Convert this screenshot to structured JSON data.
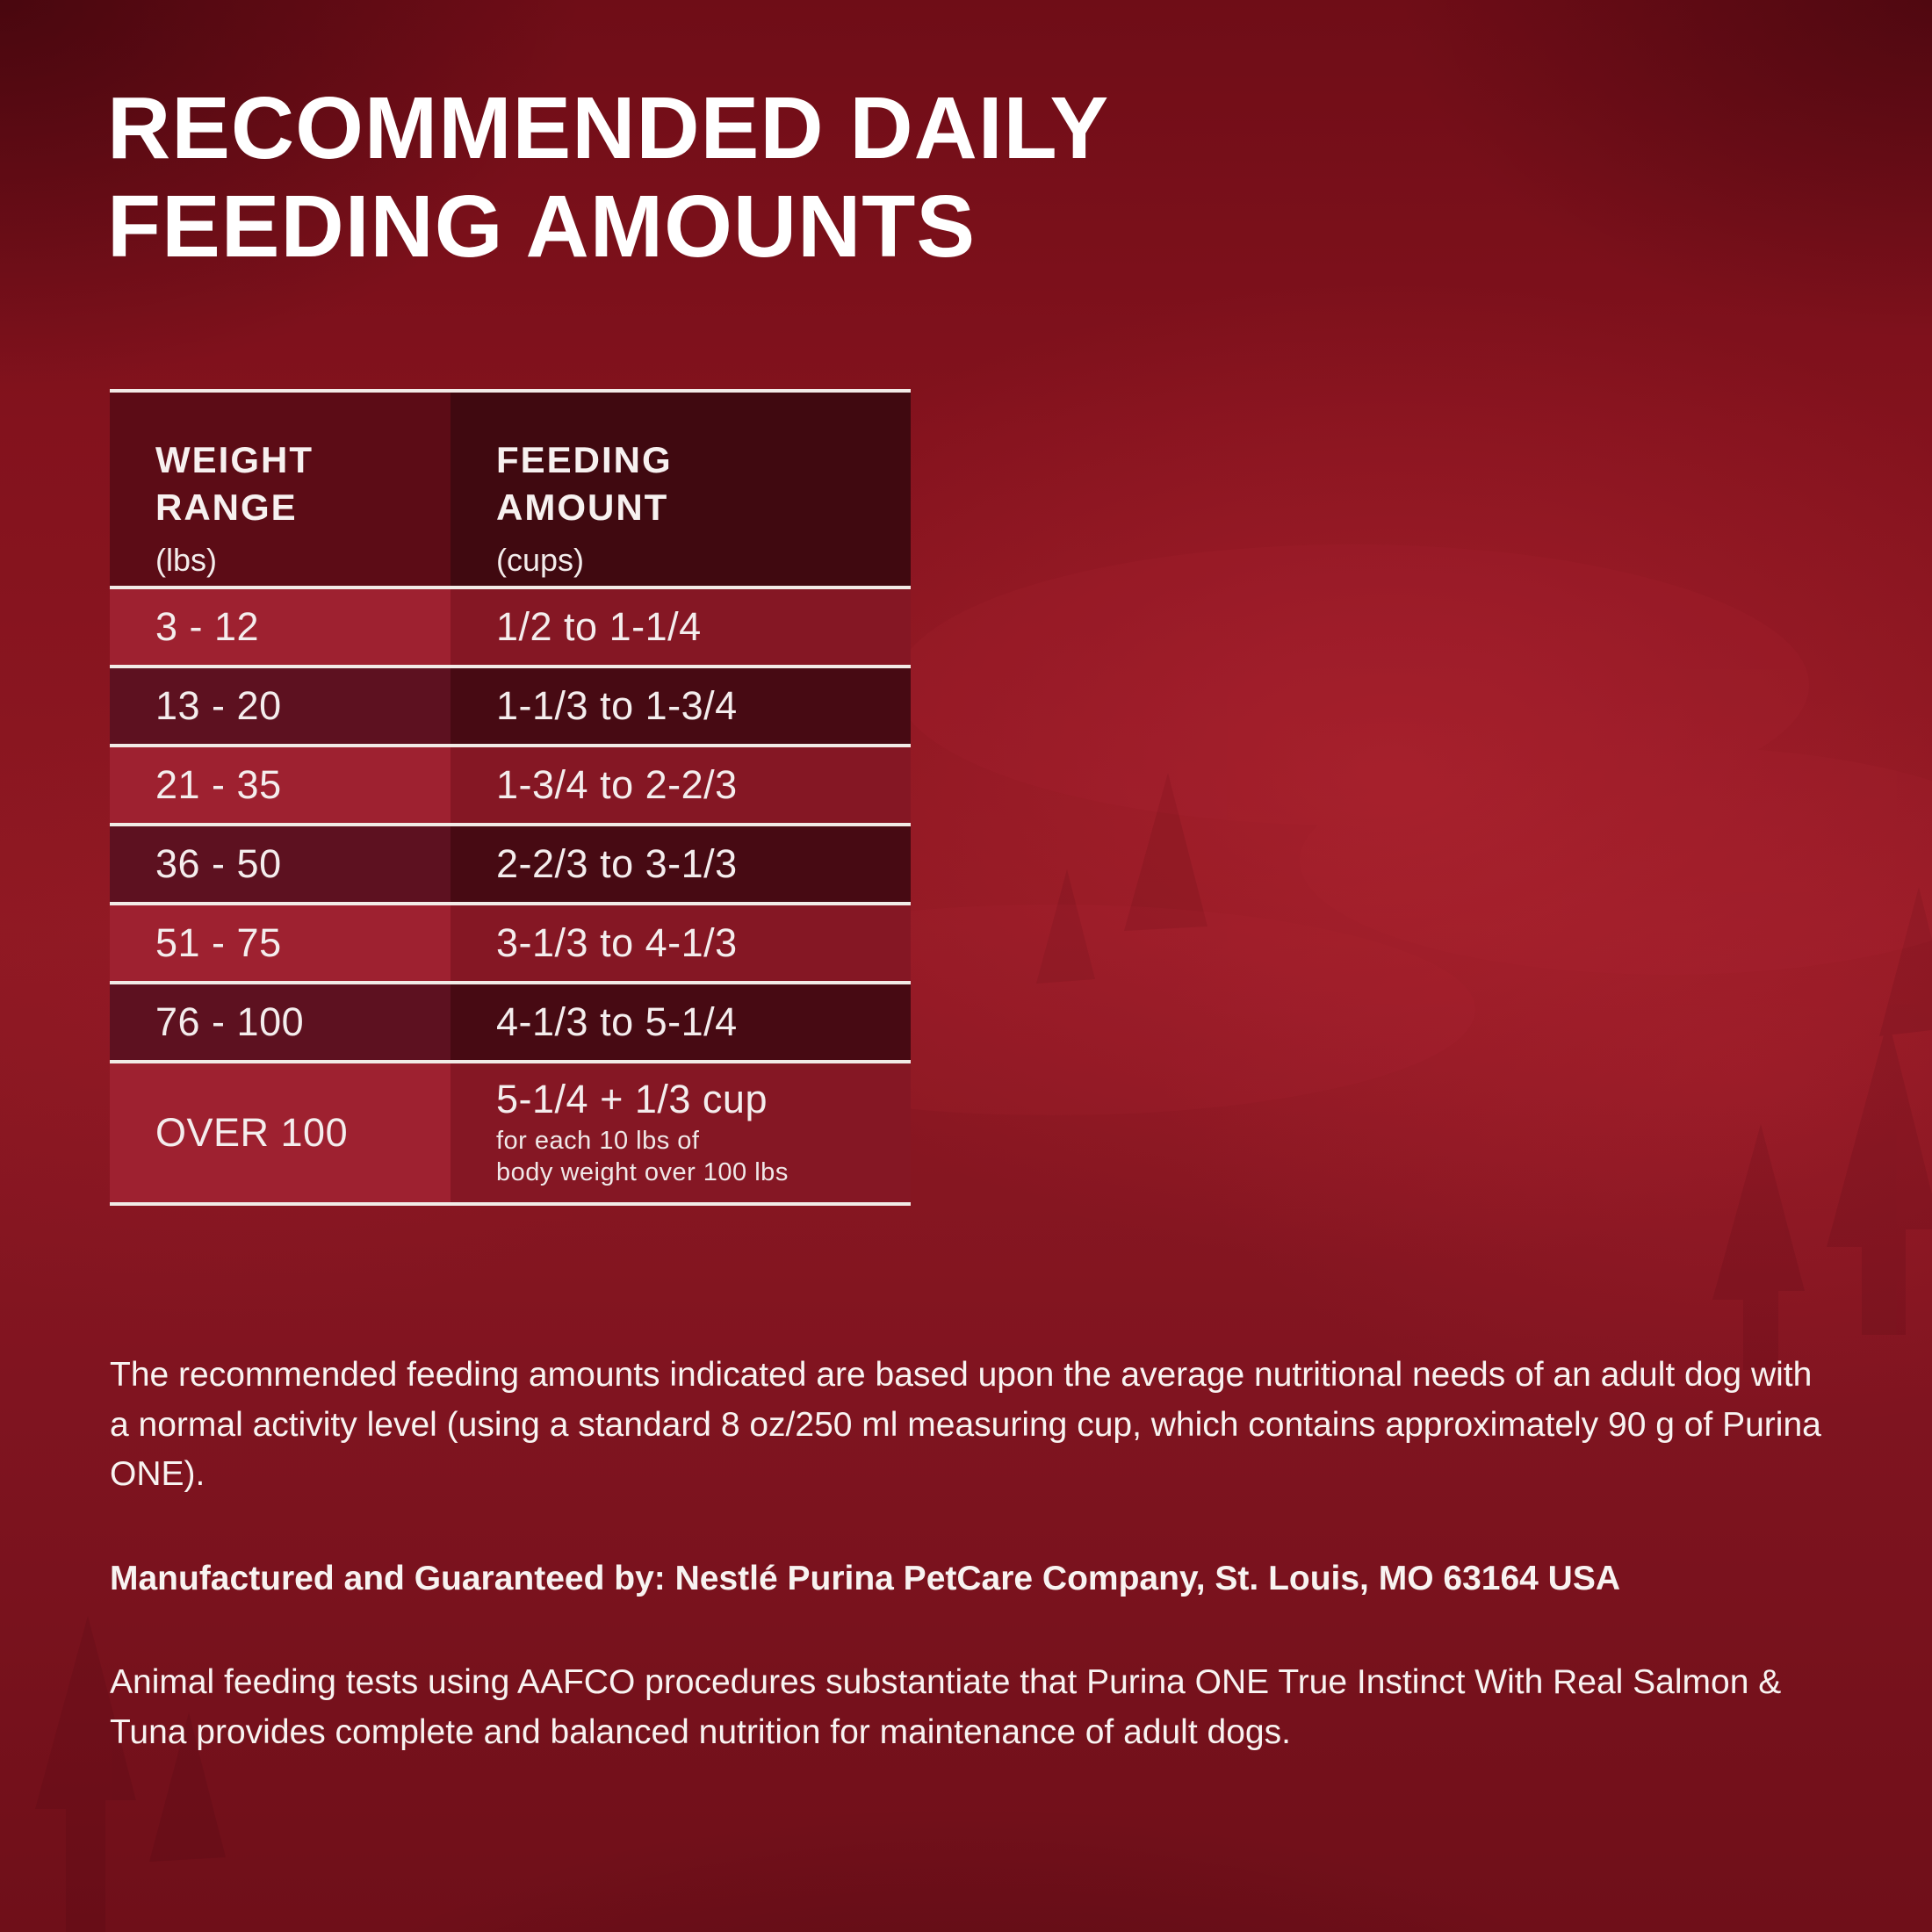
{
  "title": {
    "line1": "RECOMMENDED DAILY",
    "line2": "FEEDING AMOUNTS"
  },
  "table": {
    "columns": [
      {
        "label_line1": "WEIGHT",
        "label_line2": "RANGE",
        "unit": "(lbs)"
      },
      {
        "label_line1": "FEEDING",
        "label_line2": "AMOUNT",
        "unit": "(cups)"
      }
    ],
    "rows": [
      {
        "weight": "3 - 12",
        "amount": "1/2 to 1-1/4"
      },
      {
        "weight": "13 - 20",
        "amount": "1-1/3 to 1-3/4"
      },
      {
        "weight": "21 - 35",
        "amount": "1-3/4 to 2-2/3"
      },
      {
        "weight": "36 - 50",
        "amount": "2-2/3 to 3-1/3"
      },
      {
        "weight": "51 - 75",
        "amount": "3-1/3 to 4-1/3"
      },
      {
        "weight": "76 - 100",
        "amount": "4-1/3 to 5-1/4"
      },
      {
        "weight": "OVER 100",
        "amount": "5-1/4 + 1/3 cup",
        "amount_note_line1": "for each 10 lbs of",
        "amount_note_line2": "body weight over 100 lbs"
      }
    ]
  },
  "notes": {
    "feeding_basis": "The recommended feeding amounts indicated are based upon the average nutritional needs of an adult dog with a normal activity level (using a standard 8 oz/250 ml measuring cup, which contains approximately 90 g of Purina ONE).",
    "manufacturer": "Manufactured and Guaranteed by: Nestlé Purina PetCare Company, St. Louis, MO 63164 USA",
    "aafco": "Animal feeding tests using AAFCO procedures substantiate that Purina ONE True Instinct With Real Salmon & Tuna provides complete and balanced nutrition for maintenance of adult dogs."
  },
  "colors": {
    "rule": "#f2ebe7",
    "header_left": "#5c0c16",
    "header_right": "#400910",
    "light_left": "#9e2130",
    "light_right": "#851724",
    "dark_left": "#5d1120",
    "dark_right": "#470a13",
    "background_base": "#8e1822",
    "text": "#f6f0ef"
  }
}
